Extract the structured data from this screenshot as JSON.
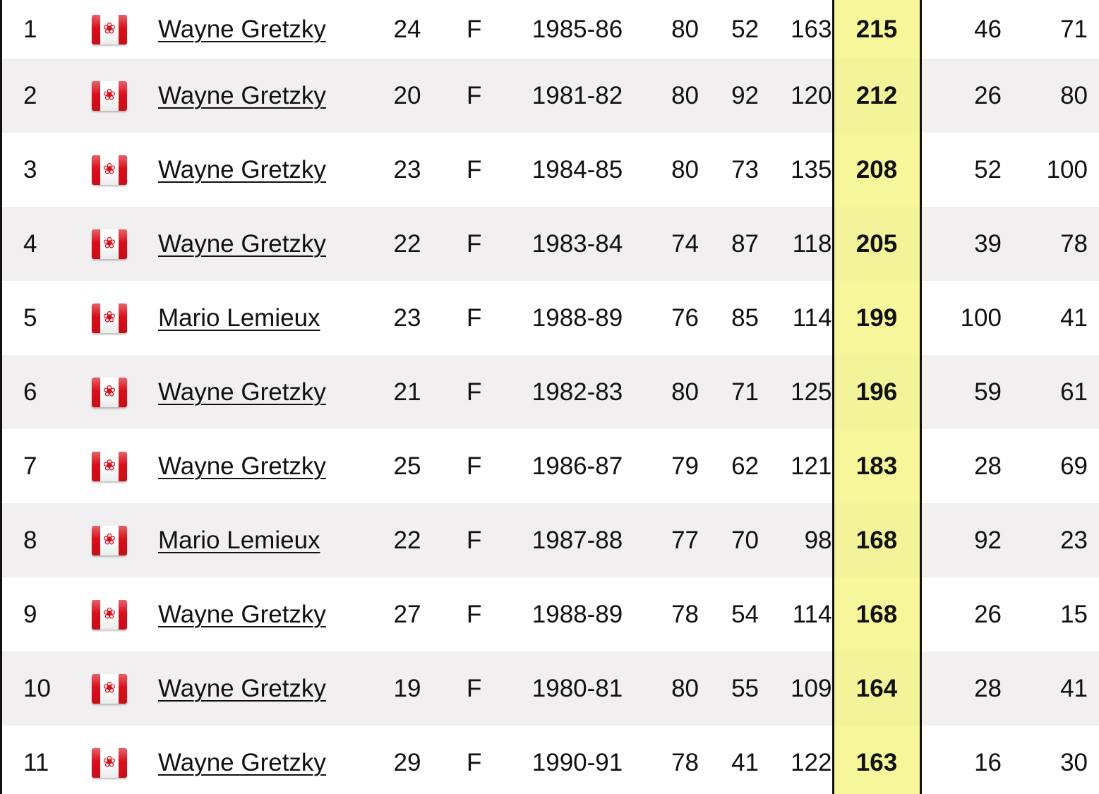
{
  "rows": [
    {
      "rank": "1",
      "country": "Canada",
      "player": "Wayne Gretzky",
      "age": "24",
      "pos": "F",
      "season": "1985-86",
      "gp": "80",
      "g": "52",
      "a": "163",
      "pts": "215",
      "plus_minus": "46",
      "pim": "71"
    },
    {
      "rank": "2",
      "country": "Canada",
      "player": "Wayne Gretzky",
      "age": "20",
      "pos": "F",
      "season": "1981-82",
      "gp": "80",
      "g": "92",
      "a": "120",
      "pts": "212",
      "plus_minus": "26",
      "pim": "80"
    },
    {
      "rank": "3",
      "country": "Canada",
      "player": "Wayne Gretzky",
      "age": "23",
      "pos": "F",
      "season": "1984-85",
      "gp": "80",
      "g": "73",
      "a": "135",
      "pts": "208",
      "plus_minus": "52",
      "pim": "100"
    },
    {
      "rank": "4",
      "country": "Canada",
      "player": "Wayne Gretzky",
      "age": "22",
      "pos": "F",
      "season": "1983-84",
      "gp": "74",
      "g": "87",
      "a": "118",
      "pts": "205",
      "plus_minus": "39",
      "pim": "78"
    },
    {
      "rank": "5",
      "country": "Canada",
      "player": "Mario Lemieux",
      "age": "23",
      "pos": "F",
      "season": "1988-89",
      "gp": "76",
      "g": "85",
      "a": "114",
      "pts": "199",
      "plus_minus": "100",
      "pim": "41"
    },
    {
      "rank": "6",
      "country": "Canada",
      "player": "Wayne Gretzky",
      "age": "21",
      "pos": "F",
      "season": "1982-83",
      "gp": "80",
      "g": "71",
      "a": "125",
      "pts": "196",
      "plus_minus": "59",
      "pim": "61"
    },
    {
      "rank": "7",
      "country": "Canada",
      "player": "Wayne Gretzky",
      "age": "25",
      "pos": "F",
      "season": "1986-87",
      "gp": "79",
      "g": "62",
      "a": "121",
      "pts": "183",
      "plus_minus": "28",
      "pim": "69"
    },
    {
      "rank": "8",
      "country": "Canada",
      "player": "Mario Lemieux",
      "age": "22",
      "pos": "F",
      "season": "1987-88",
      "gp": "77",
      "g": "70",
      "a": "98",
      "pts": "168",
      "plus_minus": "92",
      "pim": "23"
    },
    {
      "rank": "9",
      "country": "Canada",
      "player": "Wayne Gretzky",
      "age": "27",
      "pos": "F",
      "season": "1988-89",
      "gp": "78",
      "g": "54",
      "a": "114",
      "pts": "168",
      "plus_minus": "26",
      "pim": "15"
    },
    {
      "rank": "10",
      "country": "Canada",
      "player": "Wayne Gretzky",
      "age": "19",
      "pos": "F",
      "season": "1980-81",
      "gp": "80",
      "g": "55",
      "a": "109",
      "pts": "164",
      "plus_minus": "28",
      "pim": "41"
    },
    {
      "rank": "11",
      "country": "Canada",
      "player": "Wayne Gretzky",
      "age": "29",
      "pos": "F",
      "season": "1990-91",
      "gp": "78",
      "g": "41",
      "a": "122",
      "pts": "163",
      "plus_minus": "16",
      "pim": "30"
    }
  ],
  "flag_icon": "canada-flag-icon",
  "colors": {
    "highlight_column": "#f6f79b",
    "row_alt": "#f1eff0",
    "flag_red": "#d80f1a"
  }
}
